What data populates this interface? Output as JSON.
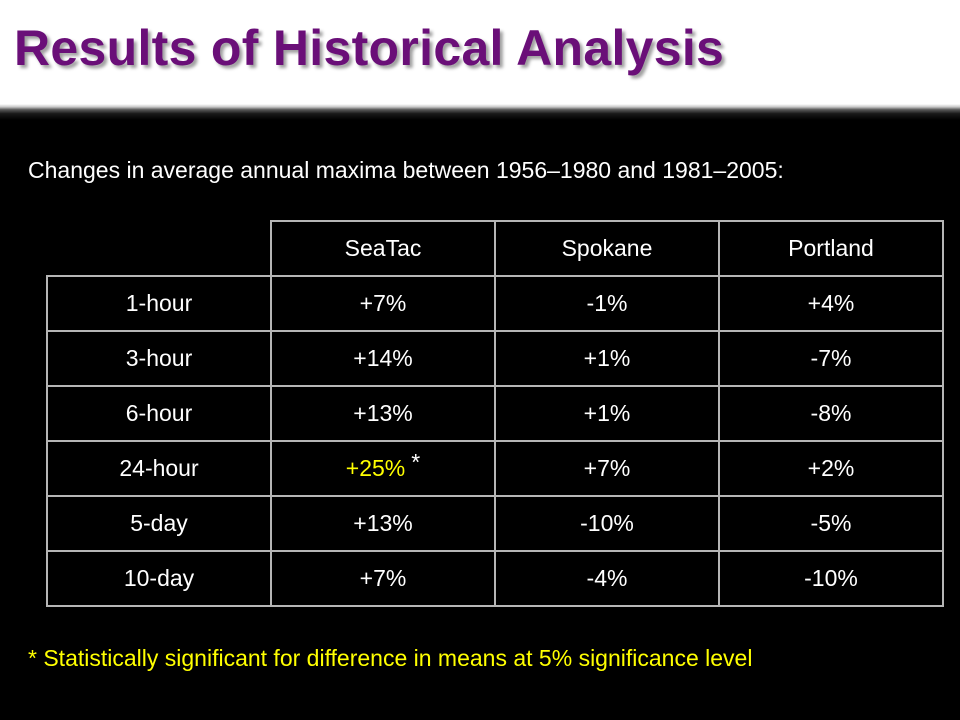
{
  "slide": {
    "title": "Results of Historical Analysis",
    "subtitle": "Changes in average annual maxima  between 1956–1980 and 1981–2005:",
    "footnote": "* Statistically significant for difference in means at 5% significance level"
  },
  "table": {
    "columns": [
      "SeaTac",
      "Spokane",
      "Portland"
    ],
    "rows": [
      {
        "label": "1-hour",
        "values": [
          "+7%",
          "-1%",
          "+4%"
        ]
      },
      {
        "label": "3-hour",
        "values": [
          "+14%",
          "+1%",
          "-7%"
        ]
      },
      {
        "label": "6-hour",
        "values": [
          "+13%",
          "+1%",
          "-8%"
        ]
      },
      {
        "label": "24-hour",
        "values": [
          "+25%",
          "+7%",
          "+2%"
        ],
        "significant_marker": "*"
      },
      {
        "label": "5-day",
        "values": [
          "+13%",
          "-10%",
          "-5%"
        ]
      },
      {
        "label": "10-day",
        "values": [
          "+7%",
          "-4%",
          "-10%"
        ]
      }
    ]
  },
  "colors": {
    "title": "#6a0f78",
    "background": "#000000",
    "text": "#ffffff",
    "highlight": "#ffff00",
    "grid": "#b5b5b5"
  }
}
